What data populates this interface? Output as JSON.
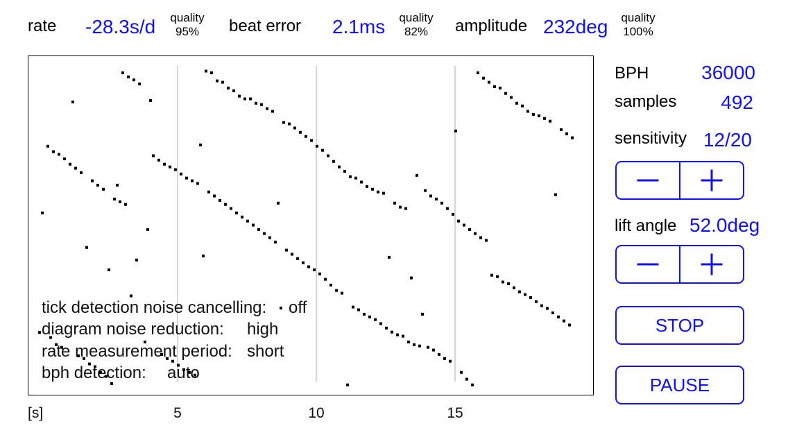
{
  "colors": {
    "accent": "#1010ff",
    "grid": "#d6d6d6",
    "dot": "#000000"
  },
  "header": {
    "metrics": [
      {
        "label": "rate",
        "value": "-28.3s/d",
        "quality_label": "quality",
        "quality_value": "95%"
      },
      {
        "label": "beat error",
        "value": "2.1ms",
        "quality_label": "quality",
        "quality_value": "82%"
      },
      {
        "label": "amplitude",
        "value": "232deg",
        "quality_label": "quality",
        "quality_value": "100%"
      }
    ]
  },
  "diagram": {
    "settings": [
      {
        "label": "tick detection noise cancelling:",
        "value": "off"
      },
      {
        "label": "diagram noise reduction:",
        "value": "high"
      },
      {
        "label": "rate measurement period:",
        "value": "short"
      },
      {
        "label": "bph detection:",
        "value": "auto"
      }
    ]
  },
  "panel": {
    "bph": {
      "label": "BPH",
      "value": "36000"
    },
    "samples": {
      "label": "samples",
      "value": "492"
    },
    "sensitivity": {
      "label": "sensitivity",
      "value": "12/20",
      "level": 12,
      "max": 20,
      "decrease_icon": "minus-icon",
      "increase_icon": "plus-icon"
    },
    "lift_angle": {
      "label": "lift angle",
      "value": "52.0deg",
      "decrease_icon": "minus-icon",
      "increase_icon": "plus-icon"
    },
    "stop_label": "STOP",
    "pause_label": "PAUSE"
  },
  "chart_data": {
    "type": "scatter",
    "title": "",
    "xlabel": "[s]",
    "ylabel": "",
    "xlim": [
      -0.375,
      19.975
    ],
    "ylim": [
      0,
      1
    ],
    "y_inverted": true,
    "x_ticks": [
      5,
      10,
      15
    ],
    "x_tick_labels": [
      "5",
      "10",
      "15"
    ],
    "grid": "vertical lines at x ticks",
    "legend": "none",
    "series": [
      {
        "name": "beat samples",
        "points": [
          [
            0.025,
            0.816
          ],
          [
            0.425,
            0.831
          ],
          [
            0.625,
            0.852
          ],
          [
            0.825,
            0.86
          ],
          [
            1.425,
            0.885
          ],
          [
            1.625,
            0.893
          ],
          [
            1.825,
            0.909
          ],
          [
            2.025,
            0.917
          ],
          [
            2.225,
            0.934
          ],
          [
            2.425,
            0.946
          ],
          [
            2.625,
            0.967
          ],
          [
            0.325,
            0.266
          ],
          [
            0.525,
            0.282
          ],
          [
            0.725,
            0.29
          ],
          [
            0.925,
            0.303
          ],
          [
            1.125,
            0.319
          ],
          [
            1.325,
            0.331
          ],
          [
            1.525,
            0.344
          ],
          [
            1.925,
            0.368
          ],
          [
            2.125,
            0.381
          ],
          [
            2.325,
            0.393
          ],
          [
            2.725,
            0.422
          ],
          [
            2.925,
            0.43
          ],
          [
            3.125,
            0.438
          ],
          [
            3.025,
            0.049
          ],
          [
            3.225,
            0.061
          ],
          [
            3.425,
            0.07
          ],
          [
            3.625,
            0.082
          ],
          [
            3.825,
            0.844
          ],
          [
            4.425,
            0.881
          ],
          [
            4.625,
            0.893
          ],
          [
            4.825,
            0.901
          ],
          [
            5.025,
            0.913
          ],
          [
            5.225,
            0.926
          ],
          [
            5.425,
            0.934
          ],
          [
            5.625,
            0.942
          ],
          [
            4.125,
            0.294
          ],
          [
            4.325,
            0.307
          ],
          [
            4.525,
            0.319
          ],
          [
            4.725,
            0.327
          ],
          [
            4.925,
            0.335
          ],
          [
            5.125,
            0.348
          ],
          [
            5.325,
            0.36
          ],
          [
            5.525,
            0.368
          ],
          [
            5.725,
            0.376
          ],
          [
            6.125,
            0.401
          ],
          [
            6.325,
            0.413
          ],
          [
            6.525,
            0.426
          ],
          [
            6.725,
            0.438
          ],
          [
            6.925,
            0.45
          ],
          [
            7.125,
            0.463
          ],
          [
            7.325,
            0.475
          ],
          [
            7.525,
            0.487
          ],
          [
            7.725,
            0.499
          ],
          [
            7.925,
            0.512
          ],
          [
            8.125,
            0.524
          ],
          [
            8.325,
            0.536
          ],
          [
            8.525,
            0.549
          ],
          [
            8.925,
            0.573
          ],
          [
            9.125,
            0.585
          ],
          [
            9.325,
            0.598
          ],
          [
            9.525,
            0.61
          ],
          [
            9.725,
            0.622
          ],
          [
            9.925,
            0.631
          ],
          [
            10.125,
            0.643
          ],
          [
            10.325,
            0.659
          ],
          [
            10.525,
            0.676
          ],
          [
            10.725,
            0.692
          ],
          [
            10.925,
            0.7
          ],
          [
            11.325,
            0.741
          ],
          [
            11.525,
            0.749
          ],
          [
            11.725,
            0.762
          ],
          [
            11.925,
            0.77
          ],
          [
            12.125,
            0.778
          ],
          [
            12.325,
            0.79
          ],
          [
            12.525,
            0.803
          ],
          [
            12.725,
            0.815
          ],
          [
            12.925,
            0.823
          ],
          [
            13.125,
            0.827
          ],
          [
            13.325,
            0.844
          ],
          [
            13.525,
            0.852
          ],
          [
            13.725,
            0.856
          ],
          [
            14.025,
            0.86
          ],
          [
            14.225,
            0.868
          ],
          [
            14.425,
            0.881
          ],
          [
            14.625,
            0.893
          ],
          [
            14.825,
            0.901
          ],
          [
            15.225,
            0.934
          ],
          [
            15.425,
            0.954
          ],
          [
            15.625,
            0.971
          ],
          [
            6.025,
            0.044
          ],
          [
            6.225,
            0.049
          ],
          [
            6.425,
            0.073
          ],
          [
            6.625,
            0.077
          ],
          [
            6.825,
            0.094
          ],
          [
            7.025,
            0.102
          ],
          [
            7.225,
            0.118
          ],
          [
            7.425,
            0.126
          ],
          [
            7.625,
            0.126
          ],
          [
            7.825,
            0.139
          ],
          [
            8.025,
            0.143
          ],
          [
            8.225,
            0.155
          ],
          [
            8.425,
            0.163
          ],
          [
            8.825,
            0.196
          ],
          [
            9.025,
            0.2
          ],
          [
            9.225,
            0.212
          ],
          [
            9.425,
            0.225
          ],
          [
            9.625,
            0.237
          ],
          [
            9.825,
            0.249
          ],
          [
            10.025,
            0.266
          ],
          [
            10.225,
            0.278
          ],
          [
            10.425,
            0.294
          ],
          [
            10.625,
            0.311
          ],
          [
            10.825,
            0.327
          ],
          [
            11.025,
            0.34
          ],
          [
            11.225,
            0.356
          ],
          [
            11.425,
            0.36
          ],
          [
            11.625,
            0.372
          ],
          [
            11.825,
            0.385
          ],
          [
            12.025,
            0.393
          ],
          [
            12.225,
            0.401
          ],
          [
            12.425,
            0.405
          ],
          [
            12.825,
            0.434
          ],
          [
            13.025,
            0.446
          ],
          [
            13.225,
            0.45
          ],
          [
            13.925,
            0.397
          ],
          [
            14.125,
            0.413
          ],
          [
            14.325,
            0.422
          ],
          [
            14.525,
            0.434
          ],
          [
            14.725,
            0.45
          ],
          [
            14.925,
            0.467
          ],
          [
            15.125,
            0.487
          ],
          [
            15.325,
            0.499
          ],
          [
            15.525,
            0.512
          ],
          [
            15.725,
            0.524
          ],
          [
            15.925,
            0.536
          ],
          [
            16.125,
            0.544
          ],
          [
            15.825,
            0.049
          ],
          [
            16.025,
            0.065
          ],
          [
            16.225,
            0.077
          ],
          [
            16.425,
            0.09
          ],
          [
            16.625,
            0.094
          ],
          [
            16.825,
            0.11
          ],
          [
            17.025,
            0.122
          ],
          [
            17.225,
            0.139
          ],
          [
            17.425,
            0.147
          ],
          [
            17.625,
            0.163
          ],
          [
            17.825,
            0.172
          ],
          [
            18.025,
            0.176
          ],
          [
            18.225,
            0.184
          ],
          [
            18.425,
            0.192
          ],
          [
            18.825,
            0.217
          ],
          [
            19.025,
            0.229
          ],
          [
            19.225,
            0.241
          ],
          [
            16.325,
            0.647
          ],
          [
            16.525,
            0.651
          ],
          [
            16.725,
            0.667
          ],
          [
            16.925,
            0.672
          ],
          [
            17.125,
            0.684
          ],
          [
            17.325,
            0.696
          ],
          [
            17.525,
            0.704
          ],
          [
            17.725,
            0.713
          ],
          [
            17.925,
            0.725
          ],
          [
            18.125,
            0.737
          ],
          [
            18.325,
            0.745
          ],
          [
            18.525,
            0.758
          ],
          [
            18.725,
            0.77
          ],
          [
            18.925,
            0.782
          ],
          [
            19.125,
            0.794
          ],
          [
            1.225,
            0.135
          ],
          [
            4.025,
            0.131
          ],
          [
            2.825,
            0.381
          ],
          [
            0.125,
            0.463
          ],
          [
            3.925,
            0.512
          ],
          [
            1.725,
            0.565
          ],
          [
            3.525,
            0.602
          ],
          [
            2.525,
            0.631
          ],
          [
            3.325,
            0.708
          ],
          [
            5.825,
            0.262
          ],
          [
            5.925,
            0.59
          ],
          [
            8.625,
            0.434
          ],
          [
            13.625,
            0.352
          ],
          [
            15.025,
            0.221
          ],
          [
            18.625,
            0.409
          ],
          [
            12.625,
            0.594
          ],
          [
            13.425,
            0.655
          ],
          [
            13.825,
            0.762
          ],
          [
            11.125,
            0.971
          ],
          [
            8.725,
            0.744
          ]
        ]
      }
    ]
  }
}
